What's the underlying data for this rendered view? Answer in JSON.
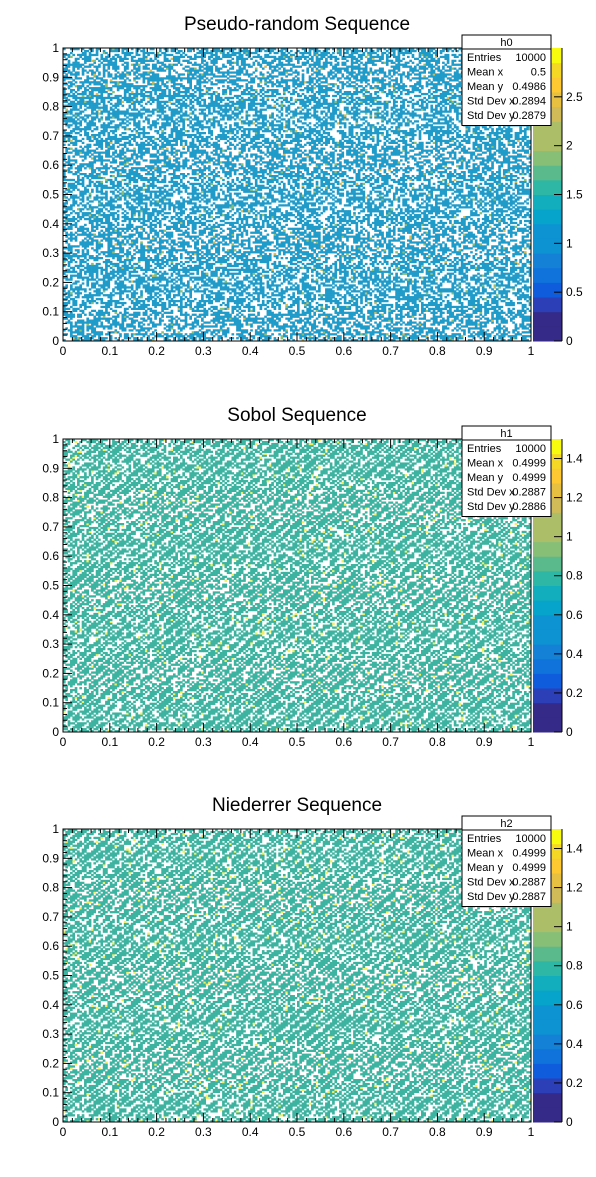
{
  "chart_data": [
    {
      "type": "heatmap",
      "title": "Pseudo-random Sequence",
      "xlim": [
        0,
        1
      ],
      "ylim": [
        0,
        1
      ],
      "x_ticks": [
        "0",
        "0.1",
        "0.2",
        "0.3",
        "0.4",
        "0.5",
        "0.6",
        "0.7",
        "0.8",
        "0.9",
        "1"
      ],
      "y_ticks": [
        "0",
        "0.1",
        "0.2",
        "0.3",
        "0.4",
        "0.5",
        "0.6",
        "0.7",
        "0.8",
        "0.9",
        "1"
      ],
      "z_range": [
        0,
        3
      ],
      "z_ticks": [
        "0",
        "0.5",
        "1",
        "1.5",
        "2",
        "2.5"
      ],
      "stats": {
        "name": "h0",
        "rows": [
          {
            "label": "Entries",
            "value": "10000"
          },
          {
            "label": "Mean x",
            "value": "0.5"
          },
          {
            "label": "Mean y",
            "value": "0.4986"
          },
          {
            "label": "Std Dev x",
            "value": "0.2894"
          },
          {
            "label": "Std Dev y",
            "value": "0.2879"
          }
        ]
      },
      "pattern": "pseudo-random",
      "fill_fraction": 0.55
    },
    {
      "type": "heatmap",
      "title": "Sobol Sequence",
      "xlim": [
        0,
        1
      ],
      "ylim": [
        0,
        1
      ],
      "x_ticks": [
        "0",
        "0.1",
        "0.2",
        "0.3",
        "0.4",
        "0.5",
        "0.6",
        "0.7",
        "0.8",
        "0.9",
        "1"
      ],
      "y_ticks": [
        "0",
        "0.1",
        "0.2",
        "0.3",
        "0.4",
        "0.5",
        "0.6",
        "0.7",
        "0.8",
        "0.9",
        "1"
      ],
      "z_range": [
        0,
        1.5
      ],
      "z_ticks": [
        "0",
        "0.2",
        "0.4",
        "0.6",
        "0.8",
        "1",
        "1.2",
        "1.4"
      ],
      "stats": {
        "name": "h1",
        "rows": [
          {
            "label": "Entries",
            "value": "10000"
          },
          {
            "label": "Mean x",
            "value": "0.4999"
          },
          {
            "label": "Mean y",
            "value": "0.4999"
          },
          {
            "label": "Std Dev x",
            "value": "0.2887"
          },
          {
            "label": "Std Dev y",
            "value": "0.2886"
          }
        ]
      },
      "pattern": "low-discrepancy",
      "fill_fraction": 0.6
    },
    {
      "type": "heatmap",
      "title": "Niederrer Sequence",
      "xlim": [
        0,
        1
      ],
      "ylim": [
        0,
        1
      ],
      "x_ticks": [
        "0",
        "0.1",
        "0.2",
        "0.3",
        "0.4",
        "0.5",
        "0.6",
        "0.7",
        "0.8",
        "0.9",
        "1"
      ],
      "y_ticks": [
        "0",
        "0.1",
        "0.2",
        "0.3",
        "0.4",
        "0.5",
        "0.6",
        "0.7",
        "0.8",
        "0.9",
        "1"
      ],
      "z_range": [
        0,
        1.5
      ],
      "z_ticks": [
        "0",
        "0.2",
        "0.4",
        "0.6",
        "0.8",
        "1",
        "1.2",
        "1.4"
      ],
      "stats": {
        "name": "h2",
        "rows": [
          {
            "label": "Entries",
            "value": "10000"
          },
          {
            "label": "Mean x",
            "value": "0.4999"
          },
          {
            "label": "Mean y",
            "value": "0.4999"
          },
          {
            "label": "Std Dev x",
            "value": "0.2887"
          },
          {
            "label": "Std Dev y",
            "value": "0.2887"
          }
        ]
      },
      "pattern": "low-discrepancy",
      "fill_fraction": 0.6
    }
  ],
  "colors": {
    "low_fill": "#1f9bc9",
    "mid_fill": "#3cb3a0",
    "high_fill": "#f4ee5c",
    "palette": [
      "#352a87",
      "#0f5cdd",
      "#1481d6",
      "#06a4ca",
      "#2eb7a4",
      "#87bf77",
      "#d1bb59",
      "#fec832",
      "#f9fb0e"
    ]
  }
}
